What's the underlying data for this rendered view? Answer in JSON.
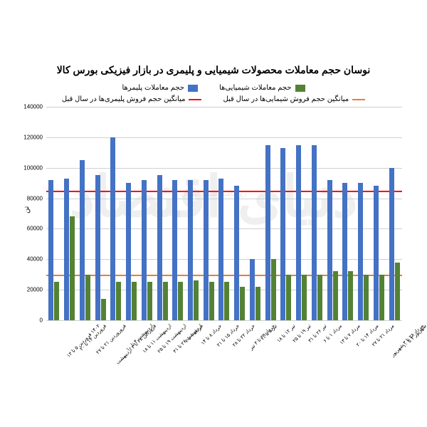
{
  "title": "نوسان حجم معاملات محصولات شیمیایی و پلیمری در بازار فیزیکی بورس کالا",
  "title_fontsize": 14,
  "ylabel": "تن",
  "legend": {
    "chemical": "حجم معاملات شیمیایی‌ها",
    "polymer": "حجم معاملات پلیمرها",
    "chemical_avg": "میانگین حجم فروش شیمایی‌ها در سال قبل",
    "polymer_avg": "میانگین حجم فروش پلیمری‌ها در سال قبل"
  },
  "colors": {
    "chemical": "#548235",
    "polymer": "#4472c4",
    "chemical_avg": "#ed7d31",
    "polymer_avg": "#ff0000",
    "grid": "#d0d0d0",
    "background": "#ffffff",
    "text": "#000000"
  },
  "ylim": [
    0,
    140000
  ],
  "ytick_step": 20000,
  "yticks": [
    0,
    20000,
    40000,
    60000,
    80000,
    100000,
    120000,
    140000
  ],
  "ref_lines": {
    "polymer_avg": 85000,
    "chemical_avg": 30000
  },
  "categories": [
    "۱۴۰۲ فروردین ۵ تا ۱۳",
    "فروردین ۱۴ تا ۲۰",
    "فروروردین ۲۱ تا ۲۷",
    "فروردین ۲۸ تا ۳ اردیبهشت",
    "اردیبهشت ۴ تا ۱۰",
    "اردیبهشت ۱۱ تا ۱۸",
    "اردیبهشت ۱۹ تا ۲۵",
    "اردیبهشت ۲۶ تا ۳۱",
    "خرداد ۱ تا ۷",
    "خرداد ۸ تا ۱۴",
    "خرداد ۱۵ تا ۲۱",
    "خرداد ۲۲ تا ۲۸",
    "خرداد ۲۹ تا ۳ تیر",
    "تیر ۵ تا ۱۱",
    "تیر ۱۲ تا ۱۸",
    "تیر ۱۹ تا ۲۵",
    "تیر ۲۶ تا ۳۱",
    "مرداد ۱ تا ۶",
    "مرداد ۷ تا ۱۳",
    "مرداد ۱۴ تا ۲۰",
    "مرداد ۲۱ تا ۲۷",
    "مرداد ۲۸ تا ۳ شهریور",
    "شهریور ۴ تا ۱۰"
  ],
  "series": {
    "polymer": [
      92000,
      93000,
      105000,
      95000,
      120000,
      90000,
      92000,
      95000,
      92000,
      92000,
      92000,
      93000,
      88000,
      40000,
      115000,
      113000,
      115000,
      115000,
      92000,
      90000,
      90000,
      88000,
      100000
    ],
    "chemical": [
      25000,
      68000,
      30000,
      14000,
      25000,
      25000,
      25000,
      25000,
      25000,
      26000,
      25000,
      25000,
      22000,
      22000,
      40000,
      30000,
      30000,
      30000,
      32000,
      32000,
      30000,
      30000,
      38000
    ]
  },
  "bar_width": 0.7,
  "fontsize_axis": 8,
  "fontsize_legend": 10,
  "watermark": "دنیای اقتصاد",
  "watermark_sub": "روزنامـه صبـح ایـران"
}
